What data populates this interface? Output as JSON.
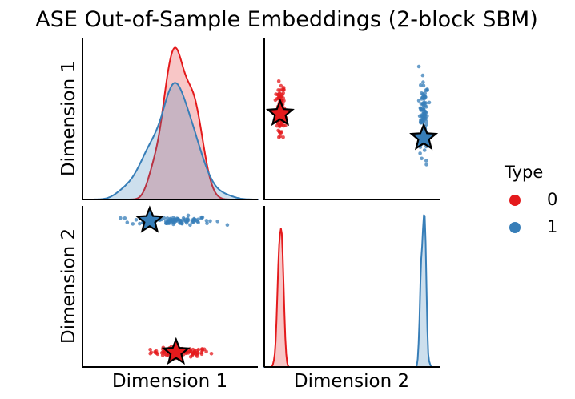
{
  "chart_data": {
    "type": "scatter",
    "title": "ASE Out-of-Sample Embeddings (2-block SBM)",
    "variables": [
      "Dimension 1",
      "Dimension 2"
    ],
    "legend": {
      "title": "Type",
      "placement": "right",
      "entries": [
        {
          "label": "0",
          "color": "#e41a1c"
        },
        {
          "label": "1",
          "color": "#377eb8"
        }
      ]
    },
    "axis_ranges": {
      "dimension_1": [
        0.35,
        0.95
      ],
      "dimension_2": [
        -0.55,
        0.55
      ]
    },
    "grid": false,
    "panels": {
      "top_left": "kde of Dimension 1 by Type",
      "top_right": "scatter Dimension 2 (x) vs Dimension 1 (y)",
      "bottom_left": "scatter Dimension 1 (x) vs Dimension 2 (y)",
      "bottom_right": "kde of Dimension 2 by Type"
    },
    "series": [
      {
        "name": "0",
        "color": "#e41a1c",
        "n_points": 100,
        "dimension_1": {
          "mean": 0.685,
          "sd": 0.05,
          "min": 0.53,
          "max": 0.82
        },
        "dimension_2": {
          "mean": -0.45,
          "sd": 0.015,
          "min": -0.49,
          "max": -0.41
        },
        "out_of_sample": {
          "dimension_1": 0.67,
          "dimension_2": -0.45
        }
      },
      {
        "name": "1",
        "color": "#377eb8",
        "n_points": 100,
        "dimension_1": {
          "mean": 0.655,
          "sd": 0.07,
          "min": 0.48,
          "max": 0.86
        },
        "dimension_2": {
          "mean": 0.45,
          "sd": 0.015,
          "min": 0.42,
          "max": 0.49
        },
        "out_of_sample": {
          "dimension_1": 0.58,
          "dimension_2": 0.45
        }
      }
    ]
  }
}
